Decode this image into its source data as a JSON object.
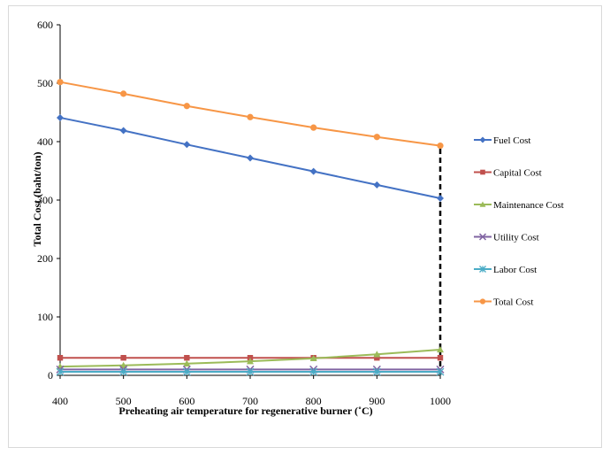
{
  "chart_data": {
    "type": "line",
    "title": "",
    "xlabel": "Preheating air temperature for regenerative burner (˚C)",
    "ylabel": "Total Cost (baht/ton)",
    "x": [
      400,
      500,
      600,
      700,
      800,
      900,
      1000
    ],
    "xticks": [
      "400",
      "500",
      "600",
      "700",
      "800",
      "900",
      "1000"
    ],
    "yticks": [
      "0",
      "100",
      "200",
      "300",
      "400",
      "500",
      "600"
    ],
    "xlim": [
      400,
      1000
    ],
    "ylim": [
      0,
      600
    ],
    "grid": false,
    "legend_position": "right",
    "series": [
      {
        "name": "Fuel Cost",
        "color": "#4472c4",
        "marker": "diamond",
        "values": [
          441,
          419,
          395,
          372,
          349,
          326,
          303
        ]
      },
      {
        "name": "Capital Cost",
        "color": "#c0504d",
        "marker": "square",
        "values": [
          30,
          30,
          30,
          30,
          30,
          30,
          30
        ]
      },
      {
        "name": "Maintenance Cost",
        "color": "#9bbb59",
        "marker": "triangle",
        "values": [
          15,
          17,
          20,
          24,
          29,
          36,
          44
        ]
      },
      {
        "name": "Utility Cost",
        "color": "#8064a2",
        "marker": "x",
        "values": [
          10,
          10,
          10,
          10,
          10,
          10,
          10
        ]
      },
      {
        "name": "Labor Cost",
        "color": "#4bacc6",
        "marker": "star",
        "values": [
          6,
          6,
          6,
          6,
          6,
          6,
          6
        ]
      },
      {
        "name": "Total Cost",
        "color": "#f79646",
        "marker": "circle",
        "values": [
          502,
          482,
          461,
          442,
          424,
          408,
          393
        ]
      }
    ],
    "annotations": [
      {
        "type": "vertical-dashed-line",
        "x": 1000,
        "from_y": 0,
        "to_y": 393,
        "color": "#000000"
      }
    ]
  }
}
